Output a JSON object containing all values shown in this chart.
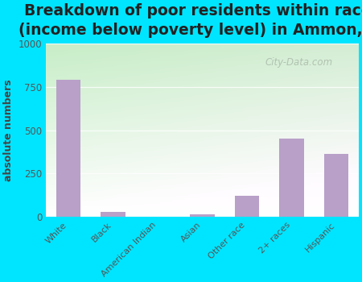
{
  "title": "Breakdown of poor residents within races\n(income below poverty level) in Ammon, ID",
  "categories": [
    "White",
    "Black",
    "American Indian",
    "Asian",
    "Other race",
    "2+ races",
    "Hispanic"
  ],
  "values": [
    790,
    30,
    0,
    15,
    120,
    450,
    365
  ],
  "bar_color": "#b8a0c8",
  "ylabel": "absolute numbers",
  "ylim": [
    0,
    1000
  ],
  "yticks": [
    0,
    250,
    500,
    750,
    1000
  ],
  "outer_bg": "#00e5ff",
  "title_color": "#222222",
  "title_fontsize": 13.5,
  "ylabel_color": "#444444",
  "tick_color": "#555555",
  "grid_color": "#ccddcc",
  "watermark": "City-Data.com",
  "watermark_color": "#aabbaa",
  "plot_bg_topleft": "#c8e8b0",
  "plot_bg_bottomright": "#f8fff8"
}
